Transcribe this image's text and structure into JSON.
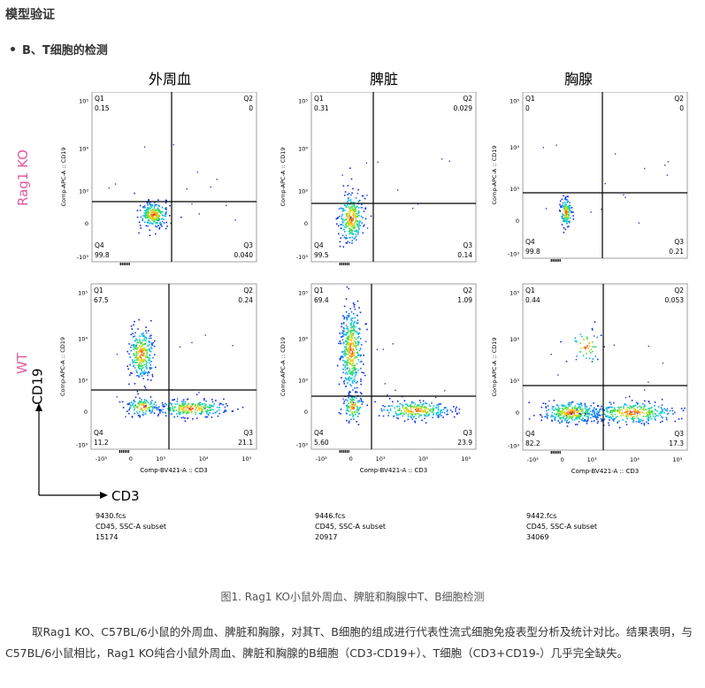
{
  "heading": "模型验证",
  "section": "B、T细胞的检测",
  "column_titles": [
    "外周血",
    "脾脏",
    "胸腺"
  ],
  "row_labels": [
    "Rag1 KO",
    "WT"
  ],
  "row_label_color": "#e05a9a",
  "axes": {
    "x_label": "Comp-BV421-A :: CD3",
    "y_label": "Comp-APC-A :: CD19",
    "x_ticks": [
      "-10³",
      "0",
      "10³",
      "10⁴",
      "10⁵"
    ],
    "y_ticks": [
      "10⁵",
      "10⁴",
      "10³",
      "0",
      "-10³"
    ]
  },
  "axis_key": {
    "y": "CD19",
    "x": "CD3"
  },
  "chart_data": [
    {
      "type": "scatter",
      "title": "外周血 Rag1 KO",
      "quadrants": {
        "Q1": "0.15",
        "Q2": "0",
        "Q3": "0.040",
        "Q4": "99.8"
      }
    },
    {
      "type": "scatter",
      "title": "脾脏 Rag1 KO",
      "quadrants": {
        "Q1": "0.31",
        "Q2": "0.029",
        "Q3": "0.14",
        "Q4": "99.5"
      }
    },
    {
      "type": "scatter",
      "title": "胸腺 Rag1 KO",
      "quadrants": {
        "Q1": "0",
        "Q2": "0",
        "Q3": "0.21",
        "Q4": "99.8"
      }
    },
    {
      "type": "scatter",
      "title": "外周血 WT",
      "quadrants": {
        "Q1": "67.5",
        "Q2": "0.24",
        "Q3": "21.1",
        "Q4": "11.2"
      }
    },
    {
      "type": "scatter",
      "title": "脾脏 WT",
      "quadrants": {
        "Q1": "69.4",
        "Q2": "1.09",
        "Q3": "23.9",
        "Q4": "5.60"
      }
    },
    {
      "type": "scatter",
      "title": "胸腺 WT",
      "quadrants": {
        "Q1": "0.44",
        "Q2": "0.053",
        "Q3": "17.3",
        "Q4": "82.2"
      }
    }
  ],
  "file_info": [
    {
      "file": "9430.fcs",
      "subset": "CD45, SSC-A subset",
      "count": "15174"
    },
    {
      "file": "9446.fcs",
      "subset": "CD45, SSC-A subset",
      "count": "20917"
    },
    {
      "file": "9442.fcs",
      "subset": "CD45, SSC-A subset",
      "count": "34069"
    }
  ],
  "caption": "图1. Rag1 KO小鼠外周血、脾脏和胸腺中T、B细胞检测",
  "paragraph": "取Rag1 KO、C57BL/6小鼠的外周血、脾脏和胸腺，对其T、B细胞的组成进行代表性流式细胞免疫表型分析及统计对比。结果表明，与C57BL/6小鼠相比，Rag1 KO纯合小鼠外周血、脾脏和胸腺的B细胞（CD3-CD19+）、T细胞（CD3+CD19-）几乎完全缺失。"
}
